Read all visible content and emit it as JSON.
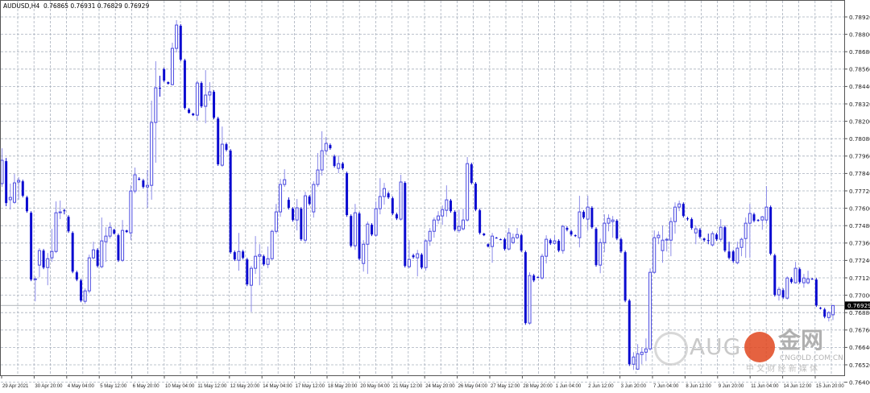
{
  "header": {
    "symbol": "AUDUSD,H4",
    "ohlc": "0.76865 0.76931 0.76829 0.76929"
  },
  "colors": {
    "background": "#ffffff",
    "grid": "#a9b1bd",
    "bull_candle": "#4848e0",
    "bear_candle": "#0b0bd0",
    "current_price_line": "#c0c4c8",
    "price_tag_bg": "#000000"
  },
  "watermark": {
    "brand": "AUG",
    "cn_brand": "金网",
    "site": "CNGOLD.COM.CN",
    "tagline": "中 文 财 经 新 媒 体"
  },
  "chart_data": {
    "type": "candlestick",
    "title": "AUDUSD,H4",
    "timeframe": "H4",
    "ylim": [
      0.764,
      0.7892
    ],
    "grid": true,
    "current_price": "0.76929",
    "y_ticks": [
      "0.78920",
      "0.78800",
      "0.78680",
      "0.78560",
      "0.78440",
      "0.78320",
      "0.78200",
      "0.78080",
      "0.77960",
      "0.77840",
      "0.77720",
      "0.77600",
      "0.77480",
      "0.77360",
      "0.77240",
      "0.77120",
      "0.77000",
      "0.76880",
      "0.76760",
      "0.76640",
      "0.76520",
      "0.76400"
    ],
    "x_ticks": [
      "29 Apr 2021",
      "30 Apr 20:00",
      "4 May 04:00",
      "5 May 12:00",
      "6 May 20:00",
      "10 May 04:00",
      "11 May 12:00",
      "12 May 20:00",
      "14 May 04:00",
      "17 May 12:00",
      "18 May 20:00",
      "20 May 04:00",
      "21 May 12:00",
      "24 May 20:00",
      "26 May 04:00",
      "27 May 12:00",
      "28 May 20:00",
      "1 Jun 04:00",
      "2 Jun 12:00",
      "3 Jun 20:00",
      "7 Jun 04:00",
      "8 Jun 12:00",
      "9 Jun 20:00",
      "11 Jun 04:00",
      "14 Jun 12:00",
      "15 Jun 20:00"
    ],
    "ohlc_format": [
      "open",
      "high",
      "low",
      "close"
    ],
    "candles": [
      [
        0.7777,
        0.78014,
        0.77747,
        0.77931
      ],
      [
        0.77925,
        0.77947,
        0.77614,
        0.77636
      ],
      [
        0.77659,
        0.7777,
        0.77591,
        0.77675
      ],
      [
        0.77641,
        0.77836,
        0.7763,
        0.77775
      ],
      [
        0.77781,
        0.77814,
        0.77659,
        0.77792
      ],
      [
        0.77786,
        0.77797,
        0.77675,
        0.77686
      ],
      [
        0.77675,
        0.77686,
        0.77569,
        0.7758
      ],
      [
        0.77569,
        0.7758,
        0.77097,
        0.77108
      ],
      [
        0.77108,
        0.7713,
        0.76958,
        0.77113
      ],
      [
        0.77208,
        0.77325,
        0.77125,
        0.77308
      ],
      [
        0.77308,
        0.77319,
        0.7718,
        0.77191
      ],
      [
        0.77191,
        0.77291,
        0.77069,
        0.77252
      ],
      [
        0.77258,
        0.77458,
        0.7723,
        0.77302
      ],
      [
        0.77302,
        0.77647,
        0.77291,
        0.77569
      ],
      [
        0.77569,
        0.77653,
        0.77525,
        0.77575
      ],
      [
        0.77586,
        0.77597,
        0.77558,
        0.7758
      ],
      [
        0.77541,
        0.77552,
        0.7743,
        0.77441
      ],
      [
        0.7743,
        0.77441,
        0.77152,
        0.77163
      ],
      [
        0.77158,
        0.77169,
        0.77097,
        0.77108
      ],
      [
        0.77102,
        0.77113,
        0.76952,
        0.76963
      ],
      [
        0.76958,
        0.77047,
        0.76941,
        0.7703
      ],
      [
        0.7703,
        0.7728,
        0.77013,
        0.77258
      ],
      [
        0.77258,
        0.77369,
        0.77247,
        0.77313
      ],
      [
        0.77313,
        0.77325,
        0.77191,
        0.77202
      ],
      [
        0.77197,
        0.77536,
        0.77186,
        0.77375
      ],
      [
        0.77369,
        0.77469,
        0.7723,
        0.77408
      ],
      [
        0.77408,
        0.77503,
        0.77391,
        0.77469
      ],
      [
        0.77452,
        0.77458,
        0.77419,
        0.77425
      ],
      [
        0.77414,
        0.77425,
        0.7723,
        0.77241
      ],
      [
        0.77241,
        0.77519,
        0.7723,
        0.77447
      ],
      [
        0.77447,
        0.77452,
        0.7743,
        0.77436
      ],
      [
        0.7743,
        0.77758,
        0.7738,
        0.77719
      ],
      [
        0.77719,
        0.77881,
        0.77703,
        0.77831
      ],
      [
        0.77803,
        0.77814,
        0.77792,
        0.778
      ],
      [
        0.77792,
        0.77803,
        0.77736,
        0.77747
      ],
      [
        0.77747,
        0.77864,
        0.77603,
        0.77758
      ],
      [
        0.77758,
        0.78342,
        0.77659,
        0.78192
      ],
      [
        0.78192,
        0.78614,
        0.77914,
        0.78431
      ],
      [
        0.78431,
        0.78514,
        0.7837,
        0.78428
      ],
      [
        0.78559,
        0.7857,
        0.7847,
        0.78481
      ],
      [
        0.7847,
        0.78475,
        0.78453,
        0.78459
      ],
      [
        0.78453,
        0.78742,
        0.78448,
        0.78703
      ],
      [
        0.78703,
        0.78898,
        0.78675,
        0.78864
      ],
      [
        0.78859,
        0.7887,
        0.78614,
        0.78625
      ],
      [
        0.7862,
        0.78631,
        0.78281,
        0.78292
      ],
      [
        0.78281,
        0.78292,
        0.78253,
        0.78258
      ],
      [
        0.78253,
        0.78258,
        0.78236,
        0.78242
      ],
      [
        0.78242,
        0.78481,
        0.78203,
        0.78464
      ],
      [
        0.78464,
        0.78475,
        0.78292,
        0.78303
      ],
      [
        0.78303,
        0.78553,
        0.78186,
        0.78381
      ],
      [
        0.78381,
        0.7847,
        0.78342,
        0.78403
      ],
      [
        0.78403,
        0.78414,
        0.78214,
        0.78225
      ],
      [
        0.78219,
        0.78231,
        0.77892,
        0.77903
      ],
      [
        0.77897,
        0.78164,
        0.77886,
        0.78042
      ],
      [
        0.78042,
        0.78053,
        0.77992,
        0.78003
      ],
      [
        0.77997,
        0.78008,
        0.77286,
        0.77297
      ],
      [
        0.77297,
        0.77308,
        0.77236,
        0.77247
      ],
      [
        0.77241,
        0.7743,
        0.77169,
        0.77302
      ],
      [
        0.77302,
        0.77313,
        0.77247,
        0.77258
      ],
      [
        0.77247,
        0.77258,
        0.77063,
        0.77075
      ],
      [
        0.77069,
        0.77202,
        0.76885,
        0.77186
      ],
      [
        0.77186,
        0.77408,
        0.77147,
        0.77269
      ],
      [
        0.77269,
        0.77352,
        0.77069,
        0.7728
      ],
      [
        0.77269,
        0.7728,
        0.77202,
        0.77213
      ],
      [
        0.77213,
        0.77336,
        0.77186,
        0.77252
      ],
      [
        0.77252,
        0.77452,
        0.77241,
        0.77441
      ],
      [
        0.77441,
        0.7763,
        0.77425,
        0.77575
      ],
      [
        0.77575,
        0.77803,
        0.77541,
        0.77764
      ],
      [
        0.77764,
        0.77869,
        0.77747,
        0.77797
      ],
      [
        0.77658,
        0.77675,
        0.77591,
        0.77603
      ],
      [
        0.77597,
        0.77608,
        0.77508,
        0.77519
      ],
      [
        0.77519,
        0.77664,
        0.77447,
        0.77603
      ],
      [
        0.77597,
        0.77608,
        0.77375,
        0.77386
      ],
      [
        0.7738,
        0.77714,
        0.77358,
        0.77686
      ],
      [
        0.77681,
        0.77692,
        0.77619,
        0.7763
      ],
      [
        0.77575,
        0.77786,
        0.77536,
        0.77764
      ],
      [
        0.77764,
        0.77981,
        0.77747,
        0.77864
      ],
      [
        0.77864,
        0.78131,
        0.77825,
        0.77997
      ],
      [
        0.77997,
        0.78092,
        0.7797,
        0.78047
      ],
      [
        0.78036,
        0.78047,
        0.78003,
        0.78014
      ],
      [
        0.77958,
        0.7797,
        0.77881,
        0.77892
      ],
      [
        0.77875,
        0.77964,
        0.77842,
        0.77908
      ],
      [
        0.77908,
        0.77919,
        0.77864,
        0.77875
      ],
      [
        0.77842,
        0.77853,
        0.77541,
        0.77553
      ],
      [
        0.77547,
        0.77558,
        0.7733,
        0.77341
      ],
      [
        0.77341,
        0.7763,
        0.77313,
        0.77569
      ],
      [
        0.77564,
        0.77575,
        0.77241,
        0.77252
      ],
      [
        0.77219,
        0.7738,
        0.77163,
        0.77352
      ],
      [
        0.77352,
        0.77508,
        0.77147,
        0.77491
      ],
      [
        0.77486,
        0.77497,
        0.77408,
        0.77419
      ],
      [
        0.77414,
        0.77647,
        0.77402,
        0.77597
      ],
      [
        0.77597,
        0.77808,
        0.77558,
        0.77681
      ],
      [
        0.77681,
        0.77775,
        0.77625,
        0.77736
      ],
      [
        0.77703,
        0.77714,
        0.77664,
        0.77675
      ],
      [
        0.77669,
        0.77681,
        0.77553,
        0.77564
      ],
      [
        0.77558,
        0.77569,
        0.77519,
        0.7753
      ],
      [
        0.77525,
        0.77831,
        0.77514,
        0.77781
      ],
      [
        0.77775,
        0.77786,
        0.77191,
        0.77202
      ],
      [
        0.77197,
        0.7738,
        0.77186,
        0.77247
      ],
      [
        0.77275,
        0.77286,
        0.77252,
        0.77263
      ],
      [
        0.77258,
        0.77313,
        0.7713,
        0.77286
      ],
      [
        0.7728,
        0.77291,
        0.7718,
        0.77191
      ],
      [
        0.77191,
        0.77386,
        0.77169,
        0.77375
      ],
      [
        0.77375,
        0.77464,
        0.77341,
        0.77441
      ],
      [
        0.77441,
        0.77536,
        0.77397,
        0.77519
      ],
      [
        0.77519,
        0.7758,
        0.77491,
        0.77547
      ],
      [
        0.77547,
        0.77619,
        0.77486,
        0.77591
      ],
      [
        0.77586,
        0.77758,
        0.77541,
        0.77658
      ],
      [
        0.77653,
        0.77664,
        0.77569,
        0.7758
      ],
      [
        0.77575,
        0.77586,
        0.77441,
        0.77452
      ],
      [
        0.77447,
        0.77591,
        0.7743,
        0.77475
      ],
      [
        0.77458,
        0.77597,
        0.77447,
        0.77519
      ],
      [
        0.77519,
        0.77953,
        0.77508,
        0.77908
      ],
      [
        0.77903,
        0.77914,
        0.77764,
        0.77775
      ],
      [
        0.7777,
        0.77781,
        0.7758,
        0.77591
      ],
      [
        0.77586,
        0.77597,
        0.77419,
        0.7743
      ],
      [
        0.77425,
        0.7743,
        0.77408,
        0.77414
      ],
      [
        0.77352,
        0.77358,
        0.7733,
        0.77336
      ],
      [
        0.77336,
        0.7743,
        0.77224,
        0.77408
      ],
      [
        0.77397,
        0.77402,
        0.77391,
        0.77394
      ],
      [
        0.77386,
        0.77391,
        0.7738,
        0.77383
      ],
      [
        0.77386,
        0.77397,
        0.77308,
        0.77319
      ],
      [
        0.77319,
        0.77464,
        0.77308,
        0.7743
      ],
      [
        0.77363,
        0.77425,
        0.77352,
        0.77397
      ],
      [
        0.77397,
        0.77464,
        0.77386,
        0.77419
      ],
      [
        0.77414,
        0.77425,
        0.77297,
        0.77308
      ],
      [
        0.77297,
        0.77308,
        0.76796,
        0.76808
      ],
      [
        0.76808,
        0.77158,
        0.76796,
        0.77136
      ],
      [
        0.77136,
        0.77147,
        0.77091,
        0.77102
      ],
      [
        0.77125,
        0.7713,
        0.77119,
        0.77122
      ],
      [
        0.77119,
        0.77286,
        0.77108,
        0.77269
      ],
      [
        0.77269,
        0.77414,
        0.77219,
        0.77386
      ],
      [
        0.7738,
        0.77391,
        0.77347,
        0.77358
      ],
      [
        0.77358,
        0.77414,
        0.77347,
        0.77375
      ],
      [
        0.77375,
        0.77386,
        0.77297,
        0.77308
      ],
      [
        0.77308,
        0.77486,
        0.77286,
        0.77475
      ],
      [
        0.77464,
        0.77475,
        0.77441,
        0.77452
      ],
      [
        0.77441,
        0.77452,
        0.77408,
        0.77419
      ],
      [
        0.77414,
        0.77419,
        0.77402,
        0.77408
      ],
      [
        0.77397,
        0.77686,
        0.7733,
        0.77575
      ],
      [
        0.77575,
        0.77586,
        0.77525,
        0.77536
      ],
      [
        0.77525,
        0.77686,
        0.77447,
        0.77608
      ],
      [
        0.77603,
        0.77614,
        0.77458,
        0.77469
      ],
      [
        0.77458,
        0.77469,
        0.77197,
        0.77208
      ],
      [
        0.77208,
        0.77391,
        0.77152,
        0.77363
      ],
      [
        0.77363,
        0.77558,
        0.77297,
        0.77497
      ],
      [
        0.77497,
        0.77558,
        0.77441,
        0.7753
      ],
      [
        0.77508,
        0.77547,
        0.77397,
        0.77519
      ],
      [
        0.77514,
        0.77525,
        0.7738,
        0.77391
      ],
      [
        0.77386,
        0.77397,
        0.77291,
        0.77302
      ],
      [
        0.77297,
        0.77308,
        0.76952,
        0.76963
      ],
      [
        0.76963,
        0.76974,
        0.76512,
        0.76524
      ],
      [
        0.76524,
        0.76607,
        0.76485,
        0.76574
      ],
      [
        0.7649,
        0.76663,
        0.76485,
        0.76596
      ],
      [
        0.76591,
        0.76641,
        0.76524,
        0.76607
      ],
      [
        0.76607,
        0.76702,
        0.76546,
        0.7663
      ],
      [
        0.7663,
        0.77186,
        0.76618,
        0.77158
      ],
      [
        0.77158,
        0.77447,
        0.77147,
        0.77397
      ],
      [
        0.77397,
        0.77441,
        0.77352,
        0.77414
      ],
      [
        0.77308,
        0.7748,
        0.77224,
        0.7738
      ],
      [
        0.7738,
        0.77397,
        0.77302,
        0.77386
      ],
      [
        0.7738,
        0.77536,
        0.77269,
        0.77508
      ],
      [
        0.77508,
        0.77641,
        0.77425,
        0.77608
      ],
      [
        0.77608,
        0.77653,
        0.7758,
        0.7763
      ],
      [
        0.7763,
        0.77641,
        0.77536,
        0.77547
      ],
      [
        0.7753,
        0.77541,
        0.77514,
        0.77525
      ],
      [
        0.77525,
        0.77536,
        0.77452,
        0.77464
      ],
      [
        0.7743,
        0.7748,
        0.77352,
        0.77458
      ],
      [
        0.77452,
        0.77464,
        0.77391,
        0.77402
      ],
      [
        0.77391,
        0.77397,
        0.77369,
        0.7738
      ],
      [
        0.7738,
        0.77425,
        0.77352,
        0.77377
      ],
      [
        0.77347,
        0.77441,
        0.77336,
        0.77425
      ],
      [
        0.77419,
        0.7743,
        0.77375,
        0.77386
      ],
      [
        0.77386,
        0.77525,
        0.77369,
        0.77469
      ],
      [
        0.77469,
        0.7748,
        0.77297,
        0.77308
      ],
      [
        0.77302,
        0.77369,
        0.77247,
        0.77258
      ],
      [
        0.77302,
        0.77313,
        0.77224,
        0.77236
      ],
      [
        0.77224,
        0.77369,
        0.77213,
        0.77325
      ],
      [
        0.7733,
        0.77397,
        0.77269,
        0.77386
      ],
      [
        0.77391,
        0.77536,
        0.77258,
        0.77497
      ],
      [
        0.77497,
        0.7763,
        0.77258,
        0.77564
      ],
      [
        0.77558,
        0.77569,
        0.77503,
        0.77514
      ],
      [
        0.77519,
        0.77525,
        0.77508,
        0.77514
      ],
      [
        0.77519,
        0.77547,
        0.77452,
        0.77541
      ],
      [
        0.77519,
        0.77753,
        0.77497,
        0.77608
      ],
      [
        0.77608,
        0.77619,
        0.77275,
        0.77286
      ],
      [
        0.77275,
        0.77286,
        0.76991,
        0.77002
      ],
      [
        0.77002,
        0.77058,
        0.76963,
        0.77041
      ],
      [
        0.77035,
        0.77047,
        0.76974,
        0.76985
      ],
      [
        0.7698,
        0.7713,
        0.76969,
        0.77119
      ],
      [
        0.77113,
        0.77125,
        0.7708,
        0.77091
      ],
      [
        0.77086,
        0.7723,
        0.7708,
        0.77186
      ],
      [
        0.7718,
        0.77191,
        0.7708,
        0.77091
      ],
      [
        0.77086,
        0.77147,
        0.77052,
        0.77119
      ],
      [
        0.77086,
        0.77169,
        0.77075,
        0.77113
      ],
      [
        0.77113,
        0.77119,
        0.77108,
        0.7711
      ],
      [
        0.77108,
        0.77119,
        0.76919,
        0.7693
      ],
      [
        0.76913,
        0.76919,
        0.76902,
        0.76908
      ],
      [
        0.76902,
        0.76913,
        0.76841,
        0.76852
      ],
      [
        0.76846,
        0.76891,
        0.76819,
        0.7688
      ],
      [
        0.76865,
        0.76931,
        0.76829,
        0.76929
      ]
    ]
  }
}
